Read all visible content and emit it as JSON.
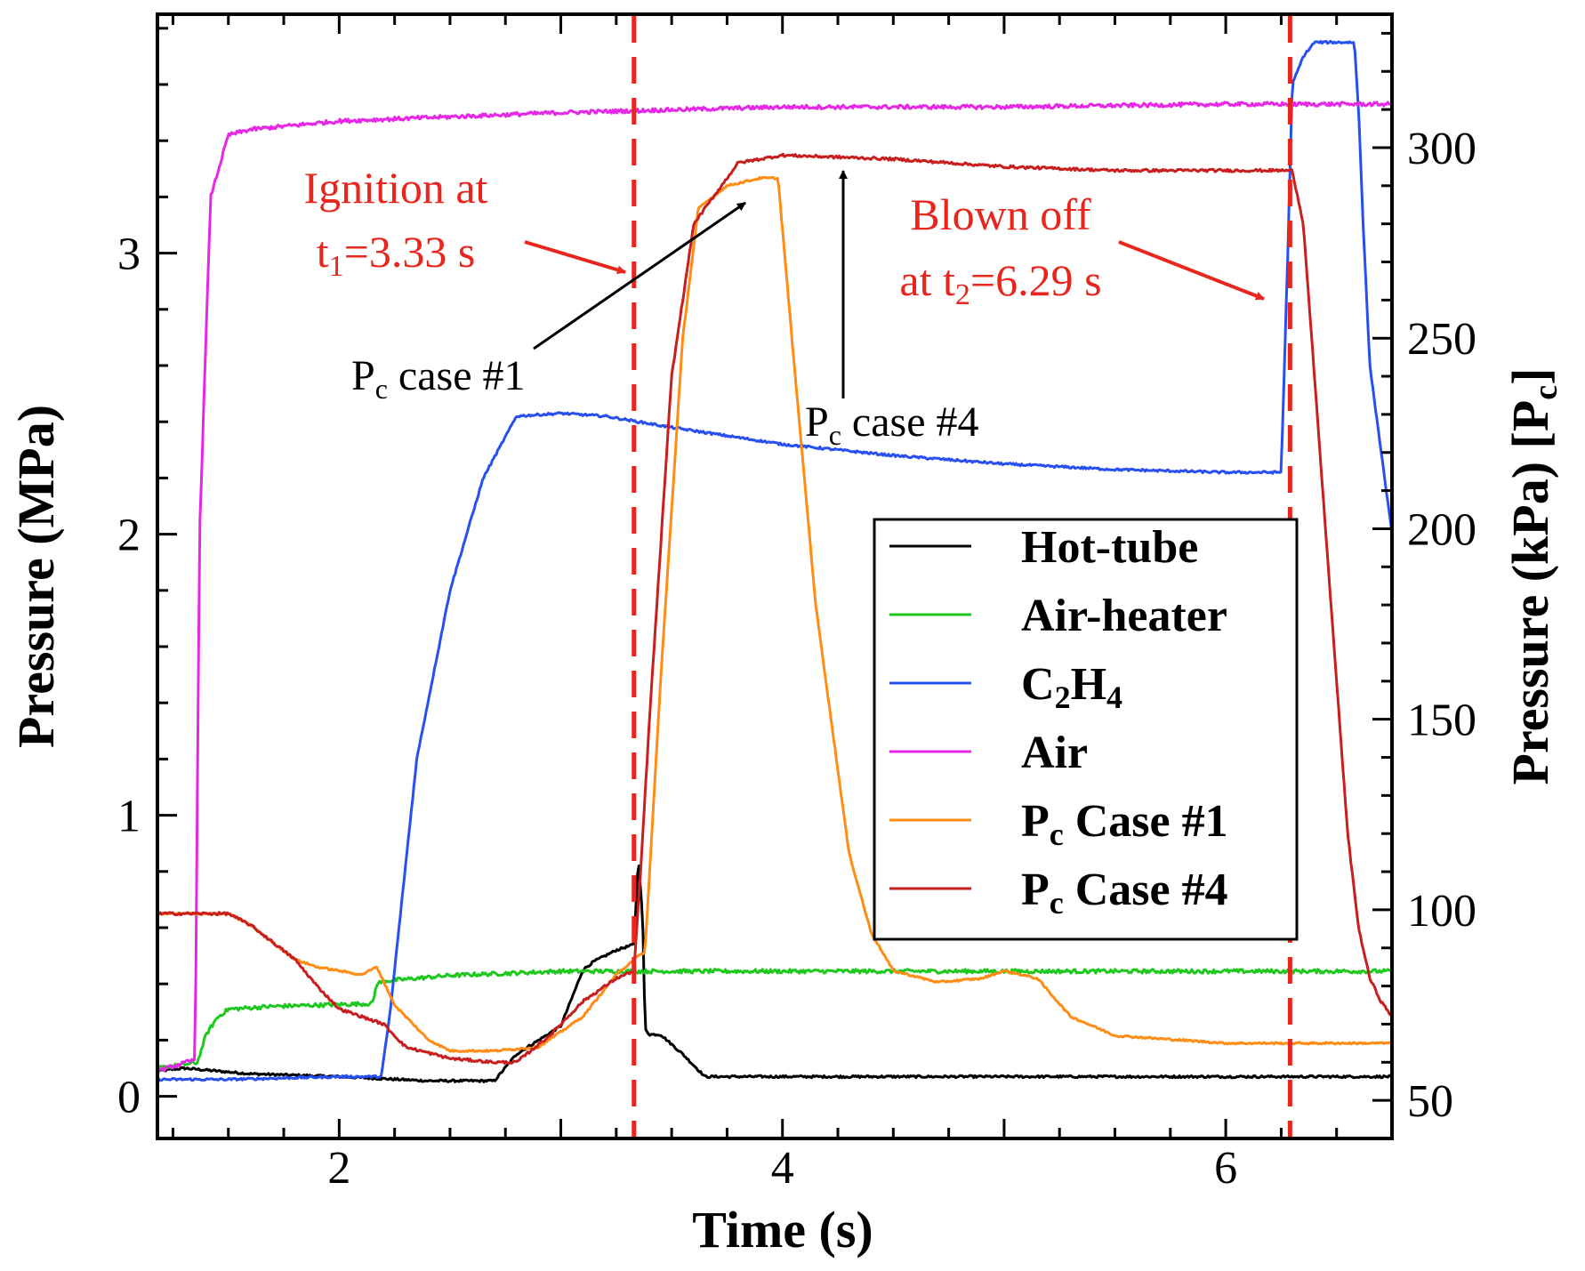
{
  "chart_data": {
    "type": "line",
    "xlabel": "Time (s)",
    "ylabel_left": "Pressure (MPa)",
    "ylabel_right": "Pressure (kPa) [P",
    "ylabel_right_sub": "c",
    "ylabel_right_end": "]",
    "xlim": [
      1.18,
      6.75
    ],
    "ylim_left": [
      -0.15,
      3.85
    ],
    "ylim_right": [
      40,
      335
    ],
    "x_ticks": [
      "2",
      "4",
      "6"
    ],
    "x_tick_values": [
      2,
      4,
      6
    ],
    "y_left_ticks": [
      "0",
      "1",
      "2",
      "3"
    ],
    "y_left_tick_values": [
      0,
      1,
      2,
      3
    ],
    "y_right_ticks": [
      "50",
      "100",
      "150",
      "200",
      "250",
      "300"
    ],
    "y_right_tick_values": [
      50,
      100,
      150,
      200,
      250,
      300
    ],
    "grid": false,
    "legend_position": "center-right",
    "series": [
      {
        "name": "Hot-tube",
        "axis": "left",
        "color": "#000000",
        "noise": 0.004,
        "x": [
          1.18,
          1.3,
          1.6,
          2.0,
          2.4,
          2.7,
          2.8,
          3.0,
          3.1,
          3.15,
          3.25,
          3.33,
          3.35,
          3.37,
          3.38,
          3.4,
          3.45,
          3.55,
          3.65,
          4.0,
          5.0,
          6.0,
          6.75
        ],
        "y": [
          0.09,
          0.1,
          0.08,
          0.07,
          0.055,
          0.055,
          0.15,
          0.25,
          0.45,
          0.48,
          0.52,
          0.54,
          0.85,
          0.62,
          0.24,
          0.22,
          0.22,
          0.15,
          0.07,
          0.07,
          0.07,
          0.07,
          0.07
        ]
      },
      {
        "name": "Air-heater",
        "axis": "left",
        "color": "#1ec81e",
        "noise": 0.007,
        "x": [
          1.18,
          1.36,
          1.4,
          1.45,
          1.5,
          1.7,
          2.15,
          2.17,
          2.2,
          2.5,
          3.0,
          4.0,
          5.0,
          6.0,
          6.75
        ],
        "y": [
          0.1,
          0.12,
          0.22,
          0.28,
          0.31,
          0.32,
          0.33,
          0.4,
          0.41,
          0.43,
          0.445,
          0.445,
          0.445,
          0.445,
          0.445
        ]
      },
      {
        "name": "C2H4",
        "axis": "left",
        "color": "#2850f0",
        "noise": 0.004,
        "x": [
          1.18,
          1.5,
          2.0,
          2.19,
          2.23,
          2.35,
          2.5,
          2.65,
          2.8,
          3.0,
          3.2,
          3.5,
          4.0,
          4.5,
          5.0,
          5.5,
          6.0,
          6.25,
          6.28,
          6.3,
          6.35,
          6.4,
          6.5,
          6.55,
          6.58,
          6.6,
          6.62,
          6.65,
          6.7,
          6.75
        ],
        "y": [
          0.06,
          0.06,
          0.07,
          0.07,
          0.3,
          1.2,
          1.8,
          2.2,
          2.42,
          2.43,
          2.42,
          2.38,
          2.32,
          2.28,
          2.25,
          2.23,
          2.22,
          2.22,
          3.0,
          3.6,
          3.7,
          3.75,
          3.75,
          3.75,
          3.75,
          3.5,
          3.1,
          2.6,
          2.3,
          2.0
        ]
      },
      {
        "name": "Air",
        "axis": "left",
        "color": "#e628e6",
        "noise": 0.007,
        "x": [
          1.18,
          1.35,
          1.37,
          1.42,
          1.5,
          1.6,
          2.0,
          3.0,
          4.0,
          5.0,
          6.0,
          6.75
        ],
        "y": [
          0.09,
          0.13,
          2.0,
          3.2,
          3.42,
          3.44,
          3.47,
          3.5,
          3.52,
          3.52,
          3.53,
          3.53
        ]
      },
      {
        "name": "P_c Case #1",
        "axis": "right",
        "color": "#ff8c14",
        "noise": 0.25,
        "x": [
          1.18,
          1.5,
          1.6,
          1.8,
          1.9,
          2.0,
          2.1,
          2.17,
          2.25,
          2.4,
          2.5,
          2.7,
          2.9,
          3.1,
          3.25,
          3.33,
          3.38,
          3.45,
          3.55,
          3.62,
          3.75,
          3.9,
          3.98,
          4.05,
          4.15,
          4.3,
          4.4,
          4.5,
          4.7,
          4.9,
          5.0,
          5.15,
          5.3,
          5.5,
          6.0,
          6.5,
          6.75
        ],
        "y": [
          99,
          99,
          96,
          87,
          85,
          84,
          83,
          85,
          75,
          66,
          63,
          63,
          64,
          72,
          83,
          87,
          89,
          160,
          250,
          284,
          290,
          292,
          292,
          245,
          180,
          115,
          94,
          84,
          81,
          82,
          84,
          82,
          72,
          67,
          65,
          65,
          65
        ]
      },
      {
        "name": "P_c Case #4",
        "axis": "right",
        "color": "#c81e1e",
        "noise": 0.35,
        "x": [
          1.18,
          1.5,
          1.6,
          1.8,
          1.9,
          2.0,
          2.1,
          2.2,
          2.3,
          2.5,
          2.7,
          2.8,
          2.95,
          3.1,
          3.25,
          3.33,
          3.36,
          3.4,
          3.5,
          3.6,
          3.8,
          4.0,
          4.5,
          5.0,
          5.5,
          6.0,
          6.3,
          6.35,
          6.4,
          6.5,
          6.55,
          6.6,
          6.65,
          6.7,
          6.75
        ],
        "y": [
          99,
          99,
          96,
          87,
          80,
          74,
          72,
          70,
          64,
          61,
          60,
          60,
          67,
          76,
          82,
          84,
          110,
          150,
          240,
          280,
          296,
          298,
          297,
          295,
          294,
          294,
          294,
          280,
          240,
          160,
          120,
          95,
          82,
          76,
          72
        ]
      }
    ],
    "legend": [
      {
        "label": "Hot-tube",
        "color": "#000000"
      },
      {
        "label": "Air-heater",
        "color": "#1ec81e"
      },
      {
        "label": "C",
        "sub": "2",
        "mid": "H",
        "sub2": "4",
        "color": "#2850f0"
      },
      {
        "label": "Air",
        "color": "#e628e6"
      },
      {
        "label": "P",
        "sub": "c",
        "mid": " Case #1",
        "color": "#ff8c14"
      },
      {
        "label": "P",
        "sub": "c",
        "mid": " Case #4",
        "color": "#c81e1e"
      }
    ],
    "vlines": [
      {
        "x": 3.33,
        "color": "#e8261e",
        "style": "dashed"
      },
      {
        "x": 6.29,
        "color": "#e8261e",
        "style": "dashed"
      }
    ],
    "annotations": {
      "ignition_line1": "Ignition at",
      "ignition_t": "t",
      "ignition_sub": "1",
      "ignition_rest": "=3.33 s",
      "blown_line1": "Blown off",
      "blown_prefix": "at t",
      "blown_sub": "2",
      "blown_rest": "=6.29 s",
      "case1_p": "P",
      "case1_sub": "c",
      "case1_rest": " case #1",
      "case4_p": "P",
      "case4_sub": "c",
      "case4_rest": " case #4"
    }
  }
}
